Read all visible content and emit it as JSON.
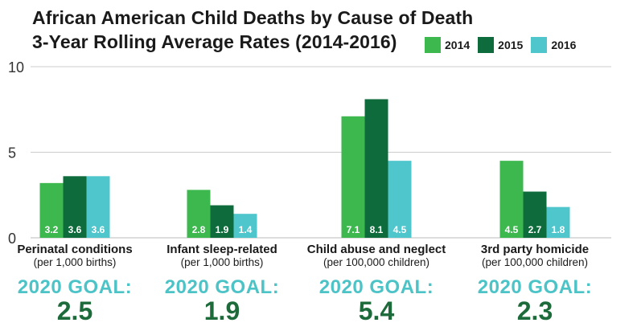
{
  "chart_data": {
    "type": "bar",
    "title": "African American Child Deaths by Cause of Death",
    "subtitle": "3-Year Rolling Average Rates (2014-2016)",
    "ylim": [
      0,
      10
    ],
    "yticks": [
      "0",
      "5",
      "10"
    ],
    "grid": true,
    "legend_position": "top-right",
    "categories": [
      {
        "name": "Perinatal conditions",
        "unit": "(per 1,000 births)",
        "goal_label": "2020 GOAL:",
        "goal_value": "2.5"
      },
      {
        "name": "Infant sleep-related",
        "unit": "(per 1,000 births)",
        "goal_label": "2020 GOAL:",
        "goal_value": "1.9"
      },
      {
        "name": "Child abuse and neglect",
        "unit": "(per 100,000 children)",
        "goal_label": "2020 GOAL:",
        "goal_value": "5.4"
      },
      {
        "name": "3rd party homicide",
        "unit": "(per 100,000 children)",
        "goal_label": "2020 GOAL:",
        "goal_value": "2.3"
      }
    ],
    "series": [
      {
        "name": "2014",
        "color": "#3cb84f",
        "values": [
          3.2,
          2.8,
          7.1,
          4.5
        ],
        "labels": [
          "3.2",
          "2.8",
          "7.1",
          "4.5"
        ]
      },
      {
        "name": "2015",
        "color": "#0e6b3b",
        "values": [
          3.6,
          1.9,
          8.1,
          2.7
        ],
        "labels": [
          "3.6",
          "1.9",
          "8.1",
          "2.7"
        ]
      },
      {
        "name": "2016",
        "color": "#4fc5cc",
        "values": [
          3.6,
          1.4,
          4.5,
          1.8
        ],
        "labels": [
          "3.6",
          "1.4",
          "4.5",
          "1.8"
        ]
      }
    ]
  }
}
